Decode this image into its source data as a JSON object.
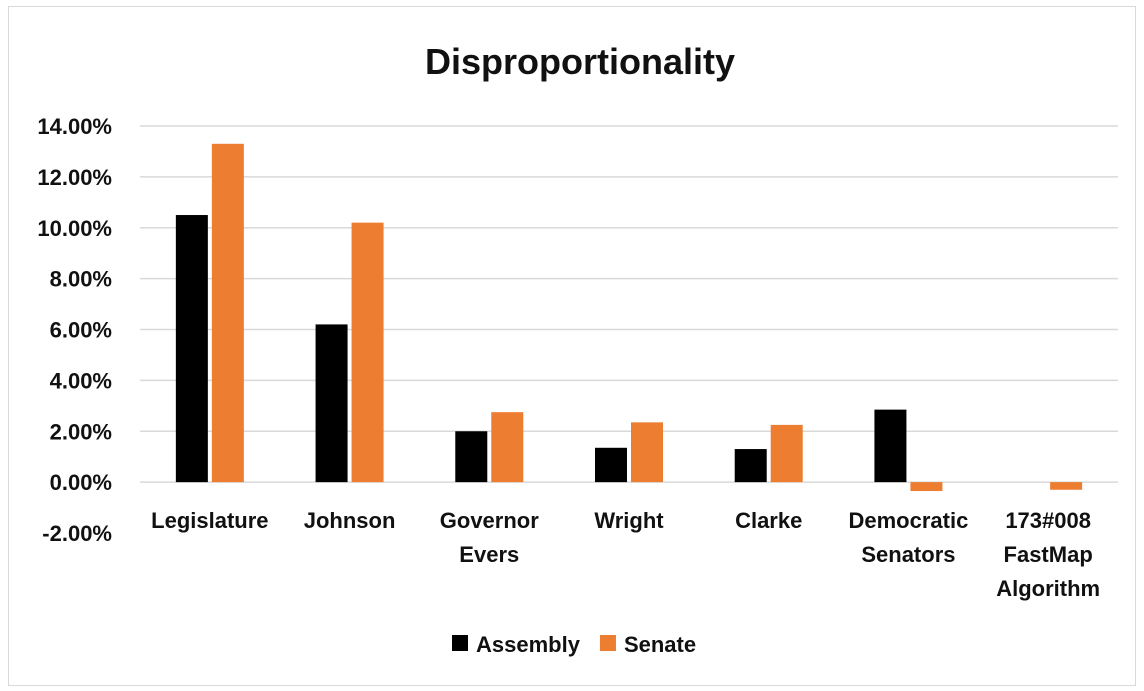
{
  "chart_data": {
    "type": "bar",
    "title": "Disproportionality",
    "categories": [
      [
        "Legislature"
      ],
      [
        "Johnson"
      ],
      [
        "Governor",
        "Evers"
      ],
      [
        "Wright"
      ],
      [
        "Clarke"
      ],
      [
        "Democratic",
        "Senators"
      ],
      [
        "173#008",
        "FastMap",
        "Algorithm"
      ]
    ],
    "series": [
      {
        "name": "Assembly",
        "color": "#000000",
        "values": [
          10.5,
          6.2,
          2.0,
          1.35,
          1.3,
          2.85,
          0.0
        ]
      },
      {
        "name": "Senate",
        "color": "#ED7D31",
        "values": [
          13.3,
          10.2,
          2.75,
          2.35,
          2.25,
          -0.35,
          -0.3
        ]
      }
    ],
    "ylim": [
      -2,
      14
    ],
    "yticks": [
      14,
      12,
      10,
      8,
      6,
      4,
      2,
      0,
      -2
    ],
    "ytick_labels": [
      "14.00%",
      "12.00%",
      "10.00%",
      "8.00%",
      "6.00%",
      "4.00%",
      "2.00%",
      "0.00%",
      "-2.00%"
    ],
    "grid": true,
    "legend": "bottom",
    "xlabel": "",
    "ylabel": ""
  }
}
